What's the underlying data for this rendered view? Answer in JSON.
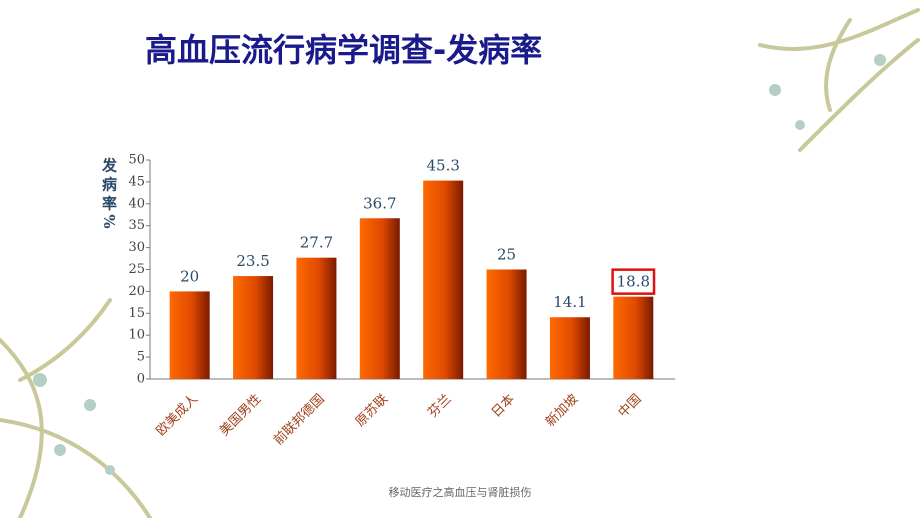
{
  "chart_data": {
    "type": "bar",
    "title": "高血压流行病学调查-发病率",
    "y_label": "发病率%",
    "categories": [
      "欧美成人",
      "美国男性",
      "前联邦德国",
      "原苏联",
      "芬兰",
      "日本",
      "新加坡",
      "中国"
    ],
    "values": [
      20,
      23.5,
      27.7,
      36.7,
      45.3,
      25,
      14.1,
      18.8
    ],
    "highlight_index": 7,
    "highlight_color": "#e01010",
    "ylim": [
      0,
      50
    ],
    "yticks": [
      0,
      5,
      10,
      15,
      20,
      25,
      30,
      35,
      40,
      45,
      50
    ],
    "grid": false
  },
  "footer": "移动医疗之高血压与肾脏损伤"
}
